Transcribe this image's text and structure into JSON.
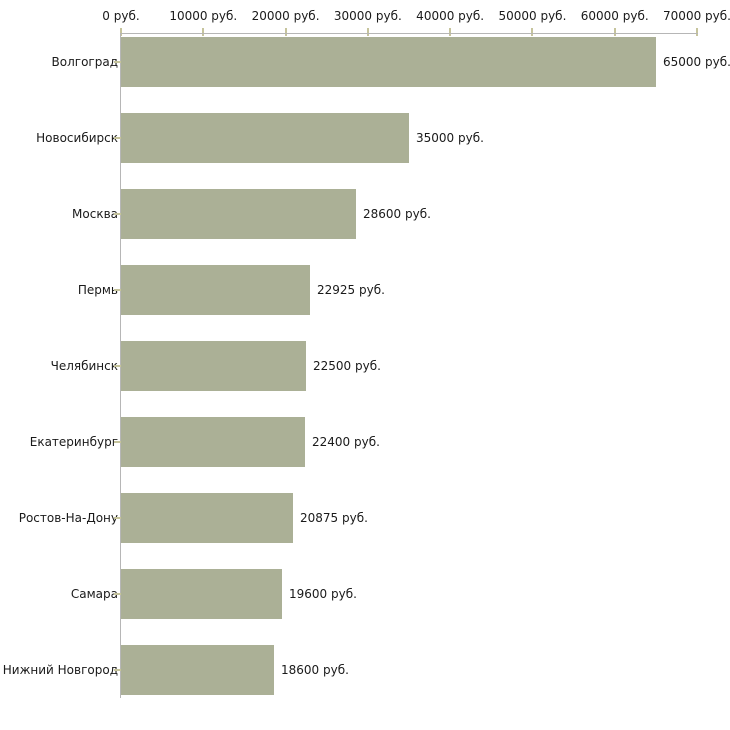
{
  "chart_data": {
    "type": "bar",
    "orientation": "horizontal",
    "title": "",
    "categories": [
      "Волгоград",
      "Новосибирск",
      "Москва",
      "Пермь",
      "Челябинск",
      "Екатеринбург",
      "Ростов-На-Дону",
      "Самара",
      "Нижний Новгород"
    ],
    "values": [
      65000,
      35000,
      28600,
      22925,
      22500,
      22400,
      20875,
      19600,
      18600
    ],
    "value_labels": [
      "65000 руб.",
      "35000 руб.",
      "28600 руб.",
      "22925 руб.",
      "22500 руб.",
      "22400 руб.",
      "20875 руб.",
      "19600 руб.",
      "18600 руб."
    ],
    "x_axis": {
      "position": "top",
      "max": 70000,
      "ticks": [
        0,
        10000,
        20000,
        30000,
        40000,
        50000,
        60000,
        70000
      ],
      "tick_labels": [
        "0 руб.",
        "10000 руб.",
        "20000 руб.",
        "30000 руб.",
        "40000 руб.",
        "50000 руб.",
        "60000 руб.",
        "70000 руб."
      ]
    },
    "grid": false,
    "legend": null,
    "colors": {
      "bar_fill": "#abb096",
      "axis_line": "#b6b6b6",
      "tick_mark": "#c6c49c",
      "text": "#1a1a1a",
      "background": "#ffffff"
    }
  }
}
